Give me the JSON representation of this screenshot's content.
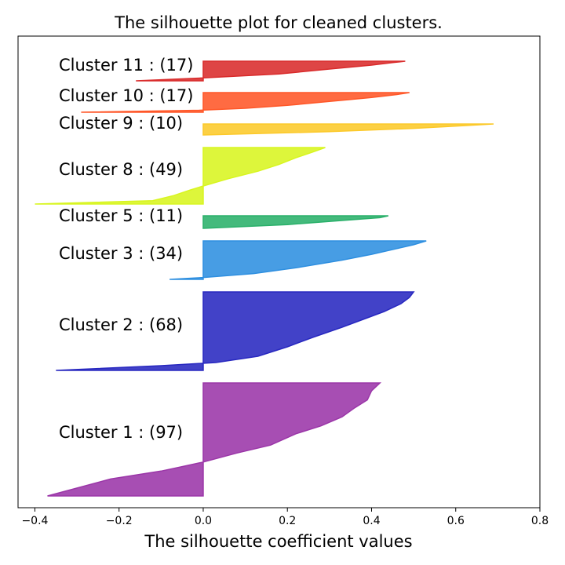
{
  "chart_data": {
    "type": "area",
    "title": "The silhouette plot for cleaned clusters.",
    "xlabel": "The silhouette coefficient values",
    "ylabel": "",
    "xlim": [
      -0.44,
      0.8
    ],
    "xticks": [
      -0.4,
      -0.2,
      0.0,
      0.2,
      0.4,
      0.6,
      0.8
    ],
    "xtick_labels": [
      "−0.4",
      "−0.2",
      "0.0",
      "0.2",
      "0.4",
      "0.6",
      "0.8"
    ],
    "yticks": "none",
    "grid": false,
    "series": [
      {
        "cluster": 1,
        "label": "Cluster 1 : (97)",
        "size": 97,
        "color": "#9b36a8",
        "min": -0.37,
        "max": 0.42,
        "profile": [
          [
            0,
            -0.37
          ],
          [
            0.15,
            -0.22
          ],
          [
            0.22,
            -0.1
          ],
          [
            0.26,
            -0.05
          ],
          [
            0.3,
            0.0
          ],
          [
            0.38,
            0.08
          ],
          [
            0.45,
            0.16
          ],
          [
            0.55,
            0.22
          ],
          [
            0.62,
            0.28
          ],
          [
            0.7,
            0.33
          ],
          [
            0.78,
            0.36
          ],
          [
            0.85,
            0.39
          ],
          [
            0.93,
            0.4
          ],
          [
            1,
            0.42
          ]
        ]
      },
      {
        "cluster": 2,
        "label": "Cluster 2 : (68)",
        "size": 68,
        "color": "#2828c0",
        "min": -0.35,
        "max": 0.5,
        "profile": [
          [
            0,
            -0.35
          ],
          [
            0.06,
            -0.1
          ],
          [
            0.1,
            0.03
          ],
          [
            0.18,
            0.13
          ],
          [
            0.3,
            0.2
          ],
          [
            0.42,
            0.26
          ],
          [
            0.55,
            0.33
          ],
          [
            0.65,
            0.38
          ],
          [
            0.75,
            0.43
          ],
          [
            0.85,
            0.47
          ],
          [
            0.93,
            0.49
          ],
          [
            1,
            0.5
          ]
        ]
      },
      {
        "cluster": 3,
        "label": "Cluster 3 : (34)",
        "size": 34,
        "color": "#2e8fe0",
        "min": -0.08,
        "max": 0.53,
        "profile": [
          [
            0,
            -0.08
          ],
          [
            0.05,
            0.0
          ],
          [
            0.15,
            0.12
          ],
          [
            0.3,
            0.22
          ],
          [
            0.5,
            0.33
          ],
          [
            0.65,
            0.4
          ],
          [
            0.8,
            0.46
          ],
          [
            0.9,
            0.5
          ],
          [
            1,
            0.53
          ]
        ]
      },
      {
        "cluster": 5,
        "label": "Cluster 5 : (11)",
        "size": 11,
        "color": "#2ab06a",
        "min": 0.0,
        "max": 0.44,
        "profile": [
          [
            0,
            0.0
          ],
          [
            0.3,
            0.2
          ],
          [
            0.6,
            0.32
          ],
          [
            0.85,
            0.42
          ],
          [
            1,
            0.44
          ]
        ]
      },
      {
        "cluster": 8,
        "label": "Cluster 8 : (49)",
        "size": 49,
        "color": "#d8f520",
        "min": -0.4,
        "max": 0.29,
        "profile": [
          [
            0,
            -0.4
          ],
          [
            0.06,
            -0.12
          ],
          [
            0.15,
            -0.07
          ],
          [
            0.25,
            -0.03
          ],
          [
            0.32,
            0.0
          ],
          [
            0.45,
            0.06
          ],
          [
            0.58,
            0.13
          ],
          [
            0.7,
            0.18
          ],
          [
            0.82,
            0.22
          ],
          [
            0.92,
            0.26
          ],
          [
            1,
            0.29
          ]
        ]
      },
      {
        "cluster": 9,
        "label": "Cluster 9 : (10)",
        "size": 10,
        "color": "#fcc92a",
        "min": 0.0,
        "max": 0.69,
        "profile": [
          [
            0,
            0.0
          ],
          [
            0.3,
            0.3
          ],
          [
            0.6,
            0.5
          ],
          [
            0.85,
            0.62
          ],
          [
            1,
            0.69
          ]
        ]
      },
      {
        "cluster": 10,
        "label": "Cluster 10 : (17)",
        "size": 17,
        "color": "#ff5728",
        "min": -0.29,
        "max": 0.49,
        "profile": [
          [
            0,
            -0.29
          ],
          [
            0.1,
            -0.01
          ],
          [
            0.2,
            0.1
          ],
          [
            0.35,
            0.2
          ],
          [
            0.55,
            0.3
          ],
          [
            0.75,
            0.4
          ],
          [
            0.9,
            0.46
          ],
          [
            1,
            0.49
          ]
        ]
      },
      {
        "cluster": 11,
        "label": "Cluster 11 : (17)",
        "size": 17,
        "color": "#d92b2b",
        "min": -0.16,
        "max": 0.48,
        "profile": [
          [
            0,
            -0.16
          ],
          [
            0.15,
            0.0
          ],
          [
            0.35,
            0.18
          ],
          [
            0.6,
            0.3
          ],
          [
            0.8,
            0.4
          ],
          [
            0.93,
            0.45
          ],
          [
            1,
            0.48
          ]
        ]
      }
    ]
  }
}
